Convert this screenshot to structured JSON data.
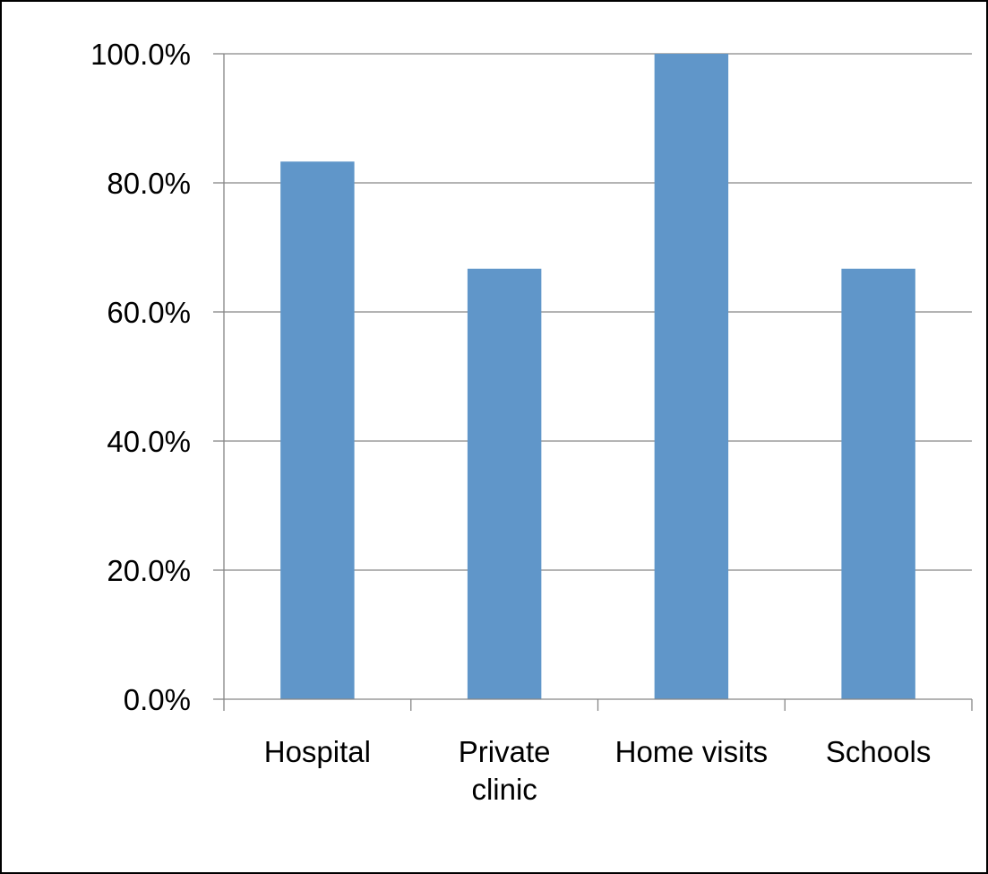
{
  "chart_data": {
    "type": "bar",
    "categories": [
      "Hospital",
      "Private clinic",
      "Home visits",
      "Schools"
    ],
    "category_label_lines": [
      [
        "Hospital"
      ],
      [
        "Private",
        "clinic"
      ],
      [
        "Home visits"
      ],
      [
        "Schools"
      ]
    ],
    "values": [
      83.3,
      66.7,
      100.0,
      66.7
    ],
    "ylim": [
      0,
      100
    ],
    "yticks": [
      0,
      20,
      40,
      60,
      80,
      100
    ],
    "ytick_labels": [
      "0.0%",
      "20.0%",
      "40.0%",
      "60.0%",
      "80.0%",
      "100.0%"
    ],
    "grid": true,
    "legend": "none",
    "title": "",
    "xlabel": "",
    "ylabel": ""
  },
  "colors": {
    "bar": "#6096C9",
    "grid": "#868686",
    "axis": "#868686",
    "border": "#000000",
    "background": "#ffffff"
  }
}
